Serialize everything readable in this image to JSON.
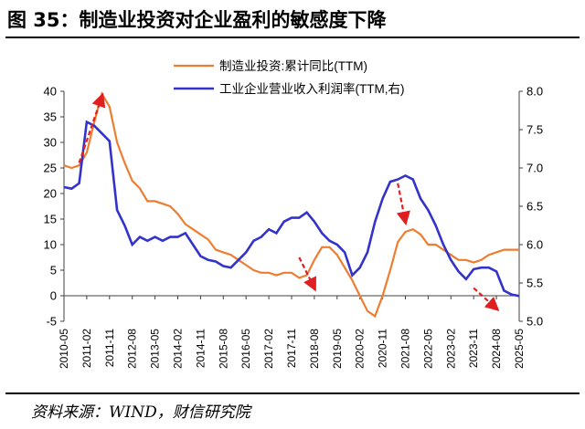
{
  "figure": {
    "title": "图 35：制造业投资对企业盈利的敏感度下降",
    "source": "资料来源：WIND，财信研究院"
  },
  "chart_data": {
    "type": "line",
    "title": "",
    "xlabel": "",
    "ylabel": "",
    "x_ticks": [
      "2010-05",
      "2011-02",
      "2011-11",
      "2012-08",
      "2013-05",
      "2014-02",
      "2014-11",
      "2015-08",
      "2016-05",
      "2017-02",
      "2017-11",
      "2018-08",
      "2019-05",
      "2020-02",
      "2020-11",
      "2021-08",
      "2022-05",
      "2023-02",
      "2023-11",
      "2024-08",
      "2025-05"
    ],
    "y_left": {
      "lim": [
        -5,
        40
      ],
      "ticks": [
        -5,
        0,
        5,
        10,
        15,
        20,
        25,
        30,
        35,
        40
      ]
    },
    "y_right": {
      "lim": [
        5.0,
        8.0
      ],
      "ticks": [
        "5.0",
        "5.5",
        "6.0",
        "6.5",
        "7.0",
        "7.5",
        "8.0"
      ]
    },
    "legend_position": "top-center",
    "grid": false,
    "colors": {
      "investment": "#ED7D31",
      "margin": "#3333CC",
      "arrow": "#E02020"
    },
    "series": [
      {
        "name": "制造业投资:累计同比(TTM)",
        "axis": "left",
        "color": "#ED7D31",
        "x": [
          "2010-05",
          "2010-08",
          "2010-11",
          "2011-02",
          "2011-05",
          "2011-08",
          "2011-11",
          "2012-02",
          "2012-05",
          "2012-08",
          "2012-11",
          "2013-02",
          "2013-05",
          "2013-08",
          "2013-11",
          "2014-02",
          "2014-05",
          "2014-08",
          "2014-11",
          "2015-02",
          "2015-05",
          "2015-08",
          "2015-11",
          "2016-02",
          "2016-05",
          "2016-08",
          "2016-11",
          "2017-02",
          "2017-05",
          "2017-08",
          "2017-11",
          "2018-02",
          "2018-05",
          "2018-08",
          "2018-11",
          "2019-02",
          "2019-05",
          "2019-08",
          "2019-11",
          "2020-02",
          "2020-05",
          "2020-08",
          "2020-11",
          "2021-02",
          "2021-05",
          "2021-08",
          "2021-11",
          "2022-02",
          "2022-05",
          "2022-08",
          "2022-11",
          "2023-02",
          "2023-05",
          "2023-08",
          "2023-11",
          "2024-02",
          "2024-05",
          "2024-08",
          "2024-11",
          "2025-02",
          "2025-05"
        ],
        "values": [
          25.5,
          25,
          25.5,
          28,
          34,
          39.5,
          37,
          30,
          26,
          22.5,
          21,
          18.5,
          18.5,
          18,
          17.5,
          16,
          14,
          13,
          12,
          11,
          9,
          8.5,
          8,
          7,
          6,
          5,
          4.5,
          4.5,
          4,
          4.5,
          4.5,
          3.5,
          4,
          7,
          9.5,
          9.5,
          8,
          5.5,
          3,
          0,
          -3,
          -4,
          0,
          5,
          10.5,
          12.5,
          13,
          12,
          10,
          10,
          9,
          8,
          7,
          7,
          6.5,
          7,
          8,
          8.5,
          9,
          9,
          9
        ]
      },
      {
        "name": "工业企业营业收入利润率(TTM,右)",
        "axis": "right",
        "color": "#3333CC",
        "x": [
          "2010-05",
          "2010-08",
          "2010-11",
          "2011-02",
          "2011-05",
          "2011-08",
          "2011-11",
          "2012-02",
          "2012-05",
          "2012-08",
          "2012-11",
          "2013-02",
          "2013-05",
          "2013-08",
          "2013-11",
          "2014-02",
          "2014-05",
          "2014-08",
          "2014-11",
          "2015-02",
          "2015-05",
          "2015-08",
          "2015-11",
          "2016-02",
          "2016-05",
          "2016-08",
          "2016-11",
          "2017-02",
          "2017-05",
          "2017-08",
          "2017-11",
          "2018-02",
          "2018-05",
          "2018-08",
          "2018-11",
          "2019-02",
          "2019-05",
          "2019-08",
          "2019-11",
          "2020-02",
          "2020-05",
          "2020-08",
          "2020-11",
          "2021-02",
          "2021-05",
          "2021-08",
          "2021-11",
          "2022-02",
          "2022-05",
          "2022-08",
          "2022-11",
          "2023-02",
          "2023-05",
          "2023-08",
          "2023-11",
          "2024-02",
          "2024-05",
          "2024-08",
          "2024-11",
          "2025-02",
          "2025-05"
        ],
        "values": [
          6.75,
          6.73,
          6.8,
          7.6,
          7.55,
          7.45,
          7.35,
          6.45,
          6.25,
          6.0,
          6.1,
          6.05,
          6.1,
          6.05,
          6.1,
          6.1,
          6.15,
          6.0,
          5.85,
          5.8,
          5.78,
          5.72,
          5.7,
          5.8,
          5.9,
          6.05,
          6.1,
          6.2,
          6.15,
          6.3,
          6.35,
          6.35,
          6.42,
          6.3,
          6.15,
          6.05,
          6.0,
          5.9,
          5.6,
          5.7,
          5.9,
          6.3,
          6.6,
          6.82,
          6.85,
          6.9,
          6.85,
          6.6,
          6.45,
          6.25,
          6.0,
          5.8,
          5.65,
          5.55,
          5.68,
          5.7,
          5.7,
          5.65,
          5.4,
          5.35,
          5.33
        ]
      }
    ],
    "annotations": [
      {
        "type": "arrow",
        "from": [
          "2010-11",
          26
        ],
        "to": [
          "2011-08",
          39
        ]
      },
      {
        "type": "arrow",
        "from": [
          "2018-02",
          7.5
        ],
        "to": [
          "2018-08",
          1.5
        ]
      },
      {
        "type": "arrow",
        "from": [
          "2021-05",
          22
        ],
        "to": [
          "2021-08",
          14.5
        ]
      },
      {
        "type": "arrow",
        "from": [
          "2023-11",
          1.5
        ],
        "to": [
          "2024-08",
          -2.5
        ]
      }
    ]
  }
}
